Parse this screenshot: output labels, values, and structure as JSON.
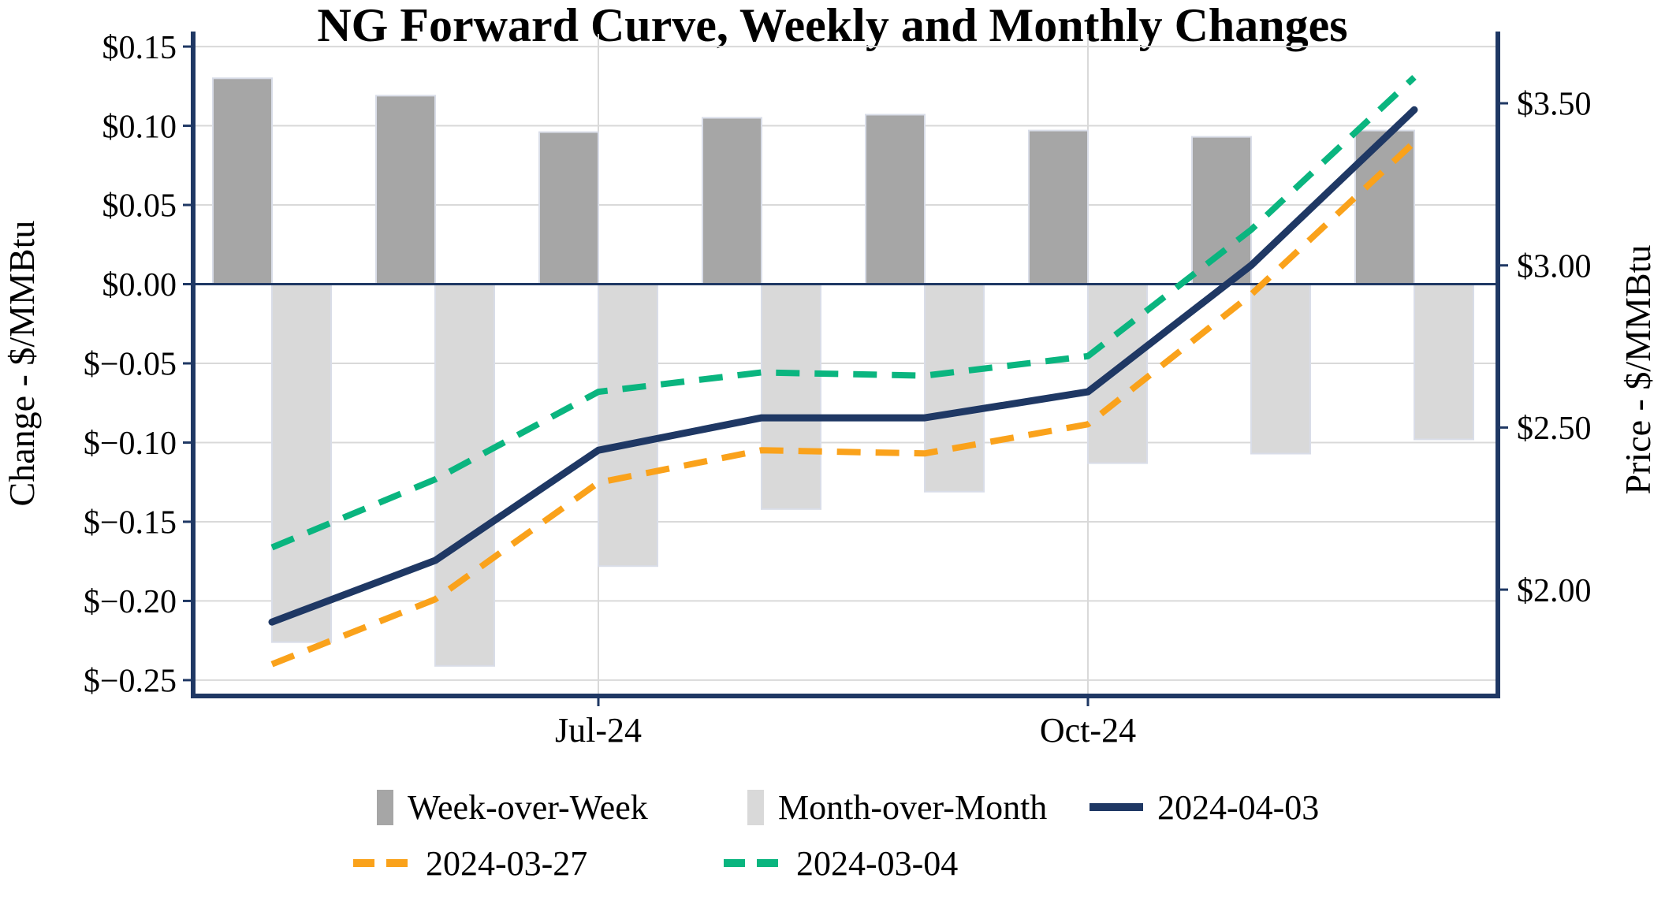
{
  "title": "NG Forward Curve, Weekly and Monthly Changes",
  "left_axis": {
    "title": "Change - $/MMBtu",
    "tick_values": [
      0.15,
      0.1,
      0.05,
      0.0,
      -0.05,
      -0.1,
      -0.15,
      -0.2,
      -0.25
    ],
    "tick_labels": [
      "$0.15",
      "$0.10",
      "$0.05",
      "$0.00",
      "$−0.05",
      "$−0.10",
      "$−0.15",
      "$−0.20",
      "$−0.25"
    ]
  },
  "right_axis": {
    "title": "Price - $/MMBtu",
    "tick_values": [
      3.5,
      3.0,
      2.5,
      2.0
    ],
    "tick_labels": [
      "$3.50",
      "$3.00",
      "$2.50",
      "$2.00"
    ]
  },
  "x_axis": {
    "ticks": [
      {
        "index": 2,
        "label": "Jul-24"
      },
      {
        "index": 5,
        "label": "Oct-24"
      }
    ]
  },
  "colors": {
    "axis_navy": "#1f3864",
    "grid_gray": "#d9d9d9",
    "bar_border": "#d9dde8",
    "background": "#ffffff"
  },
  "chart_data": {
    "type": "combo-bar-line",
    "title": "NG Forward Curve, Weekly and Monthly Changes",
    "n_categories": 8,
    "x_tick_labels_shown": [
      "Jul-24",
      "Oct-24"
    ],
    "left_ylabel": "Change - $/MMBtu",
    "right_ylabel": "Price - $/MMBtu",
    "left_ylim": [
      -0.26,
      0.158
    ],
    "right_ylim": [
      1.672,
      3.714
    ],
    "grid": true,
    "legend_position": "bottom",
    "bar_series": [
      {
        "name": "Week-over-Week",
        "axis": "left",
        "color": "#a6a6a6",
        "values": [
          0.13,
          0.119,
          0.096,
          0.105,
          0.107,
          0.097,
          0.093,
          0.097
        ]
      },
      {
        "name": "Month-over-Month",
        "axis": "left",
        "color": "#d9d9d9",
        "values": [
          -0.226,
          -0.241,
          -0.178,
          -0.142,
          -0.131,
          -0.113,
          -0.107,
          -0.098
        ]
      }
    ],
    "line_series": [
      {
        "name": "2024-04-03",
        "axis": "right",
        "color": "#1f3864",
        "style": "solid",
        "values": [
          1.9,
          2.09,
          2.43,
          2.53,
          2.53,
          2.61,
          3.0,
          3.48
        ]
      },
      {
        "name": "2024-03-27",
        "axis": "right",
        "color": "#faa21b",
        "style": "dashed",
        "values": [
          1.77,
          1.97,
          2.33,
          2.43,
          2.42,
          2.51,
          2.91,
          3.38
        ]
      },
      {
        "name": "2024-03-04",
        "axis": "right",
        "color": "#0ab57f",
        "style": "dashed",
        "values": [
          2.13,
          2.34,
          2.61,
          2.67,
          2.66,
          2.72,
          3.11,
          3.58
        ]
      }
    ]
  }
}
